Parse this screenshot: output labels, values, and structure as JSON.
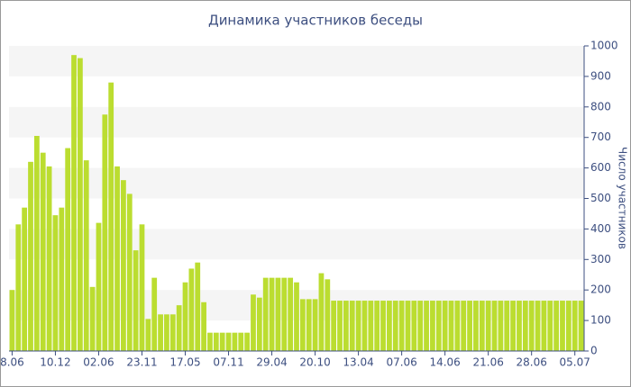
{
  "chart_data": {
    "type": "bar",
    "title": "Динамика участников беседы",
    "y_label": "Число участников",
    "categories": [
      "8.06",
      null,
      null,
      null,
      null,
      null,
      null,
      "10.12",
      null,
      null,
      null,
      null,
      null,
      null,
      "02.06",
      null,
      null,
      null,
      null,
      null,
      null,
      "23.11",
      null,
      null,
      null,
      null,
      null,
      null,
      "17.05",
      null,
      null,
      null,
      null,
      null,
      null,
      "07.11",
      null,
      null,
      null,
      null,
      null,
      null,
      "29.04",
      null,
      null,
      null,
      null,
      null,
      null,
      "20.10",
      null,
      null,
      null,
      null,
      null,
      null,
      "13.04",
      null,
      null,
      null,
      null,
      null,
      null,
      "07.06",
      null,
      null,
      null,
      null,
      null,
      null,
      "14.06",
      null,
      null,
      null,
      null,
      null,
      null,
      "21.06",
      null,
      null,
      null,
      null,
      null,
      null,
      "28.06",
      null,
      null,
      null,
      null,
      null,
      null,
      "05.07",
      null
    ],
    "values": [
      200,
      415,
      470,
      620,
      705,
      650,
      605,
      445,
      470,
      665,
      970,
      960,
      625,
      210,
      420,
      775,
      880,
      605,
      560,
      515,
      330,
      415,
      105,
      240,
      120,
      120,
      120,
      150,
      225,
      270,
      290,
      160,
      60,
      60,
      60,
      60,
      60,
      60,
      60,
      185,
      175,
      240,
      240,
      240,
      240,
      240,
      225,
      170,
      170,
      170,
      255,
      235,
      165,
      165,
      165,
      165,
      165,
      165,
      165,
      165,
      165,
      165,
      165,
      165,
      165,
      165,
      165,
      165,
      165,
      165,
      165,
      165,
      165,
      165,
      165,
      165,
      165,
      165,
      165,
      165,
      165,
      165,
      165,
      165,
      165,
      165,
      165,
      165,
      165,
      165,
      165,
      165,
      165
    ],
    "color": "#bbdd30",
    "ylim": [
      0,
      1000
    ],
    "yticks": [
      0,
      100,
      200,
      300,
      400,
      500,
      600,
      700,
      800,
      900,
      1000
    ],
    "grid": true,
    "y_axis_side": "right"
  }
}
